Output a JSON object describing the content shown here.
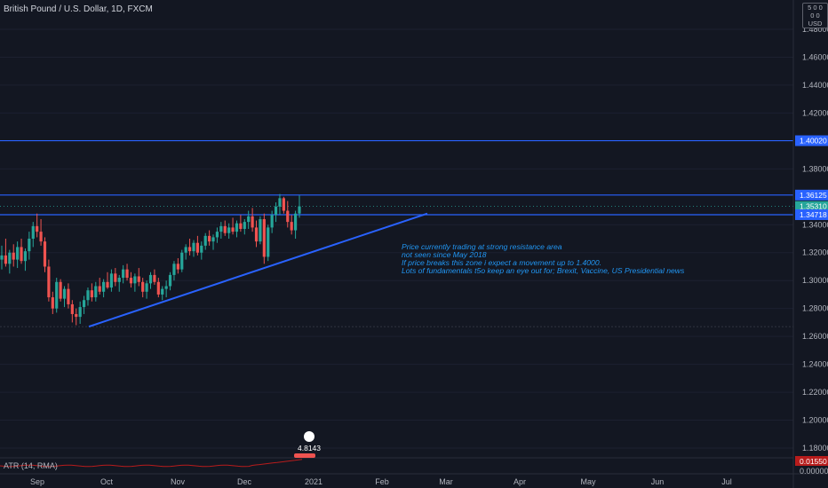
{
  "title": "British Pound / U.S. Dollar, 1D, FXCM",
  "currency_badge": {
    "top": "5 0 0 0 0",
    "bottom": "USD"
  },
  "colors": {
    "background": "#131722",
    "up_candle": "#26a69a",
    "down_candle": "#ef5350",
    "resistance_line": "#2962ff",
    "trendline": "#2962ff",
    "annotation": "#2196f3",
    "atr_line": "#b71c1c"
  },
  "annotation_lines": [
    "Price currently trading at strong resistance area",
    "not seen since May 2018",
    "If price breaks this zone i expect a movement up to 1.4000.",
    "Lots of fundamentals t5o keep an eye out for; Brexit, Vaccine, US Presidential news"
  ],
  "atr_label": "ATR (14, RMA)",
  "atr_badges": [
    "0.01550",
    "0.00000"
  ],
  "event_badge": "4.8143",
  "chart_data": {
    "type": "candlestick",
    "title": "British Pound / U.S. Dollar, 1D, FXCM",
    "x_ticks": [
      "Sep",
      "Oct",
      "Nov",
      "Dec",
      "2021",
      "Feb",
      "Mar",
      "Apr",
      "May",
      "Jun",
      "Jul"
    ],
    "y_ticks": [
      "1.48000",
      "1.46000",
      "1.44000",
      "1.42000",
      "1.38000",
      "1.34000",
      "1.32000",
      "1.30000",
      "1.28000",
      "1.26000",
      "1.24000",
      "1.22000",
      "1.20000",
      "1.18000"
    ],
    "ylim": [
      1.165,
      1.5
    ],
    "price_badges": [
      {
        "label": "1.40020",
        "value": 1.4002,
        "kind": "resistance"
      },
      {
        "label": "1.36125",
        "value": 1.36125,
        "kind": "resistance"
      },
      {
        "label": "1.35310",
        "value": 1.3531,
        "kind": "last"
      },
      {
        "label": "1.34718",
        "value": 1.34718,
        "kind": "resistance"
      }
    ],
    "support_level": 1.267,
    "trendline": {
      "from": {
        "date": "2020-09-24",
        "price": 1.267
      },
      "to": {
        "date": "2021-01-21",
        "price": 1.348
      }
    },
    "candles": [
      {
        "o": 1.315,
        "h": 1.325,
        "l": 1.308,
        "c": 1.318
      },
      {
        "o": 1.318,
        "h": 1.33,
        "l": 1.31,
        "c": 1.312
      },
      {
        "o": 1.312,
        "h": 1.322,
        "l": 1.305,
        "c": 1.32
      },
      {
        "o": 1.32,
        "h": 1.326,
        "l": 1.31,
        "c": 1.315
      },
      {
        "o": 1.315,
        "h": 1.328,
        "l": 1.309,
        "c": 1.324
      },
      {
        "o": 1.324,
        "h": 1.33,
        "l": 1.312,
        "c": 1.314
      },
      {
        "o": 1.314,
        "h": 1.323,
        "l": 1.307,
        "c": 1.321
      },
      {
        "o": 1.321,
        "h": 1.335,
        "l": 1.315,
        "c": 1.33
      },
      {
        "o": 1.33,
        "h": 1.342,
        "l": 1.324,
        "c": 1.339
      },
      {
        "o": 1.339,
        "h": 1.348,
        "l": 1.331,
        "c": 1.335
      },
      {
        "o": 1.335,
        "h": 1.344,
        "l": 1.325,
        "c": 1.328
      },
      {
        "o": 1.328,
        "h": 1.331,
        "l": 1.306,
        "c": 1.31
      },
      {
        "o": 1.31,
        "h": 1.315,
        "l": 1.285,
        "c": 1.288
      },
      {
        "o": 1.288,
        "h": 1.292,
        "l": 1.276,
        "c": 1.28
      },
      {
        "o": 1.28,
        "h": 1.302,
        "l": 1.277,
        "c": 1.299
      },
      {
        "o": 1.299,
        "h": 1.301,
        "l": 1.285,
        "c": 1.287
      },
      {
        "o": 1.287,
        "h": 1.296,
        "l": 1.281,
        "c": 1.294
      },
      {
        "o": 1.294,
        "h": 1.298,
        "l": 1.28,
        "c": 1.283
      },
      {
        "o": 1.283,
        "h": 1.286,
        "l": 1.27,
        "c": 1.276
      },
      {
        "o": 1.276,
        "h": 1.28,
        "l": 1.268,
        "c": 1.274
      },
      {
        "o": 1.274,
        "h": 1.285,
        "l": 1.269,
        "c": 1.281
      },
      {
        "o": 1.281,
        "h": 1.289,
        "l": 1.276,
        "c": 1.286
      },
      {
        "o": 1.286,
        "h": 1.295,
        "l": 1.282,
        "c": 1.293
      },
      {
        "o": 1.293,
        "h": 1.298,
        "l": 1.285,
        "c": 1.288
      },
      {
        "o": 1.288,
        "h": 1.299,
        "l": 1.285,
        "c": 1.296
      },
      {
        "o": 1.296,
        "h": 1.302,
        "l": 1.29,
        "c": 1.292
      },
      {
        "o": 1.292,
        "h": 1.301,
        "l": 1.288,
        "c": 1.299
      },
      {
        "o": 1.299,
        "h": 1.306,
        "l": 1.294,
        "c": 1.295
      },
      {
        "o": 1.295,
        "h": 1.308,
        "l": 1.292,
        "c": 1.305
      },
      {
        "o": 1.305,
        "h": 1.309,
        "l": 1.296,
        "c": 1.299
      },
      {
        "o": 1.299,
        "h": 1.304,
        "l": 1.292,
        "c": 1.302
      },
      {
        "o": 1.302,
        "h": 1.311,
        "l": 1.298,
        "c": 1.308
      },
      {
        "o": 1.308,
        "h": 1.312,
        "l": 1.3,
        "c": 1.302
      },
      {
        "o": 1.302,
        "h": 1.306,
        "l": 1.295,
        "c": 1.298
      },
      {
        "o": 1.298,
        "h": 1.305,
        "l": 1.292,
        "c": 1.303
      },
      {
        "o": 1.303,
        "h": 1.309,
        "l": 1.296,
        "c": 1.299
      },
      {
        "o": 1.299,
        "h": 1.302,
        "l": 1.288,
        "c": 1.292
      },
      {
        "o": 1.292,
        "h": 1.3,
        "l": 1.287,
        "c": 1.298
      },
      {
        "o": 1.298,
        "h": 1.306,
        "l": 1.294,
        "c": 1.304
      },
      {
        "o": 1.304,
        "h": 1.308,
        "l": 1.297,
        "c": 1.299
      },
      {
        "o": 1.299,
        "h": 1.302,
        "l": 1.288,
        "c": 1.29
      },
      {
        "o": 1.29,
        "h": 1.296,
        "l": 1.286,
        "c": 1.294
      },
      {
        "o": 1.294,
        "h": 1.3,
        "l": 1.288,
        "c": 1.296
      },
      {
        "o": 1.296,
        "h": 1.306,
        "l": 1.293,
        "c": 1.304
      },
      {
        "o": 1.304,
        "h": 1.314,
        "l": 1.3,
        "c": 1.312
      },
      {
        "o": 1.312,
        "h": 1.316,
        "l": 1.305,
        "c": 1.308
      },
      {
        "o": 1.308,
        "h": 1.322,
        "l": 1.306,
        "c": 1.32
      },
      {
        "o": 1.32,
        "h": 1.326,
        "l": 1.315,
        "c": 1.324
      },
      {
        "o": 1.324,
        "h": 1.33,
        "l": 1.318,
        "c": 1.321
      },
      {
        "o": 1.321,
        "h": 1.329,
        "l": 1.317,
        "c": 1.327
      },
      {
        "o": 1.327,
        "h": 1.332,
        "l": 1.318,
        "c": 1.32
      },
      {
        "o": 1.32,
        "h": 1.328,
        "l": 1.315,
        "c": 1.325
      },
      {
        "o": 1.325,
        "h": 1.334,
        "l": 1.322,
        "c": 1.332
      },
      {
        "o": 1.332,
        "h": 1.336,
        "l": 1.325,
        "c": 1.328
      },
      {
        "o": 1.328,
        "h": 1.333,
        "l": 1.322,
        "c": 1.331
      },
      {
        "o": 1.331,
        "h": 1.338,
        "l": 1.327,
        "c": 1.335
      },
      {
        "o": 1.335,
        "h": 1.342,
        "l": 1.33,
        "c": 1.339
      },
      {
        "o": 1.339,
        "h": 1.343,
        "l": 1.332,
        "c": 1.334
      },
      {
        "o": 1.334,
        "h": 1.341,
        "l": 1.33,
        "c": 1.338
      },
      {
        "o": 1.338,
        "h": 1.345,
        "l": 1.333,
        "c": 1.335
      },
      {
        "o": 1.335,
        "h": 1.343,
        "l": 1.331,
        "c": 1.341
      },
      {
        "o": 1.341,
        "h": 1.347,
        "l": 1.335,
        "c": 1.337
      },
      {
        "o": 1.337,
        "h": 1.344,
        "l": 1.333,
        "c": 1.342
      },
      {
        "o": 1.342,
        "h": 1.35,
        "l": 1.337,
        "c": 1.346
      },
      {
        "o": 1.346,
        "h": 1.352,
        "l": 1.335,
        "c": 1.338
      },
      {
        "o": 1.338,
        "h": 1.343,
        "l": 1.324,
        "c": 1.328
      },
      {
        "o": 1.328,
        "h": 1.346,
        "l": 1.326,
        "c": 1.344
      },
      {
        "o": 1.344,
        "h": 1.348,
        "l": 1.312,
        "c": 1.317
      },
      {
        "o": 1.317,
        "h": 1.34,
        "l": 1.314,
        "c": 1.338
      },
      {
        "o": 1.338,
        "h": 1.35,
        "l": 1.334,
        "c": 1.347
      },
      {
        "o": 1.347,
        "h": 1.356,
        "l": 1.342,
        "c": 1.353
      },
      {
        "o": 1.353,
        "h": 1.362,
        "l": 1.347,
        "c": 1.359
      },
      {
        "o": 1.359,
        "h": 1.36,
        "l": 1.348,
        "c": 1.35
      },
      {
        "o": 1.35,
        "h": 1.357,
        "l": 1.338,
        "c": 1.342
      },
      {
        "o": 1.342,
        "h": 1.347,
        "l": 1.333,
        "c": 1.336
      },
      {
        "o": 1.336,
        "h": 1.35,
        "l": 1.33,
        "c": 1.348
      },
      {
        "o": 1.348,
        "h": 1.361,
        "l": 1.345,
        "c": 1.3531
      }
    ]
  }
}
